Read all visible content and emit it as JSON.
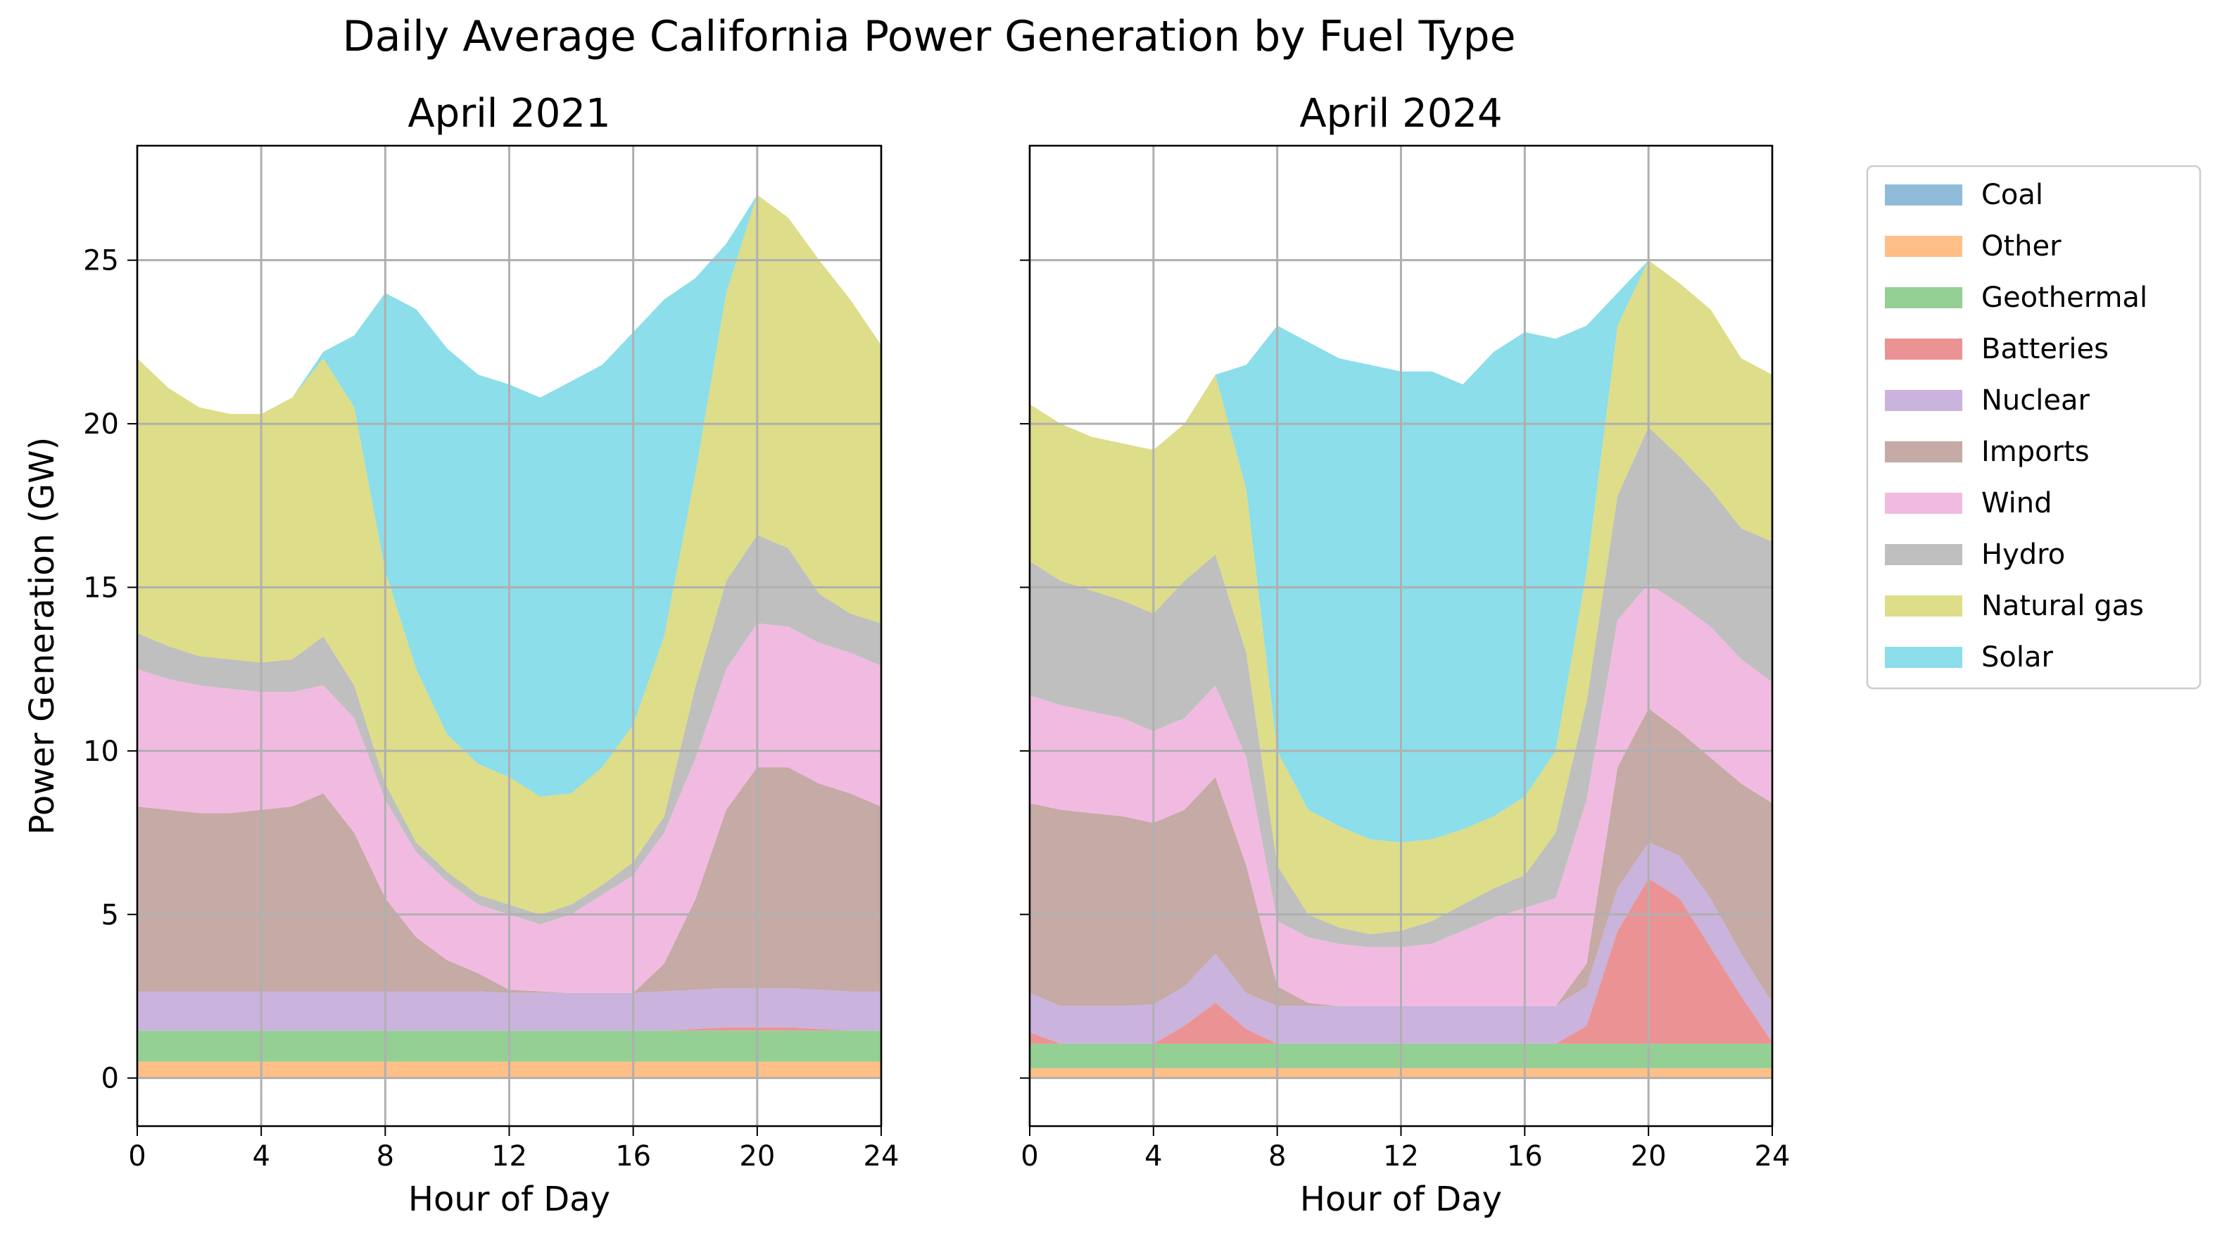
{
  "chart_data": {
    "type": "area",
    "title": "Daily Average California Power Generation by Fuel Type",
    "xlabel": "Hour of Day",
    "ylabel": "Power Generation (GW)",
    "xlim": [
      0,
      24
    ],
    "ylim": [
      -1.47,
      28.5
    ],
    "xticks": [
      0,
      4,
      8,
      12,
      16,
      20,
      24
    ],
    "yticks": [
      0,
      5,
      10,
      15,
      20,
      25
    ],
    "grid": true,
    "legend_position": "outside-right",
    "series_names": [
      "Coal",
      "Other",
      "Geothermal",
      "Batteries",
      "Nuclear",
      "Imports",
      "Wind",
      "Hydro",
      "Natural gas",
      "Solar"
    ],
    "colors": [
      "#8fbbd9",
      "#ffbf86",
      "#94cf94",
      "#eb9394",
      "#cab3dd",
      "#c5aaa5",
      "#f1bbe1",
      "#bfbfbf",
      "#dedd89",
      "#8bdeea"
    ],
    "x": [
      0,
      1,
      2,
      3,
      4,
      5,
      6,
      7,
      8,
      9,
      10,
      11,
      12,
      13,
      14,
      15,
      16,
      17,
      18,
      19,
      20,
      21,
      22,
      23,
      24
    ],
    "panels": [
      {
        "title": "April 2021",
        "series": [
          {
            "name": "Coal",
            "values": [
              0,
              0,
              0,
              0,
              0,
              0,
              0,
              0,
              0,
              0,
              0,
              0,
              0,
              0,
              0,
              0,
              0,
              0,
              0,
              0,
              0,
              0,
              0,
              0,
              0
            ]
          },
          {
            "name": "Other",
            "values": [
              0.5,
              0.5,
              0.5,
              0.5,
              0.5,
              0.5,
              0.5,
              0.5,
              0.5,
              0.5,
              0.5,
              0.5,
              0.5,
              0.5,
              0.5,
              0.5,
              0.5,
              0.5,
              0.5,
              0.5,
              0.5,
              0.5,
              0.5,
              0.5,
              0.5
            ]
          },
          {
            "name": "Geothermal",
            "values": [
              0.95,
              0.95,
              0.95,
              0.95,
              0.95,
              0.95,
              0.95,
              0.95,
              0.95,
              0.95,
              0.95,
              0.95,
              0.95,
              0.95,
              0.95,
              0.95,
              0.95,
              0.95,
              0.95,
              0.95,
              0.95,
              0.95,
              0.95,
              0.95,
              0.95
            ]
          },
          {
            "name": "Batteries",
            "values": [
              0,
              0,
              0,
              0,
              0,
              0,
              0,
              0,
              0,
              0,
              0,
              0,
              0,
              0,
              0,
              0,
              0,
              0,
              0.05,
              0.1,
              0.1,
              0.1,
              0.05,
              0,
              0
            ]
          },
          {
            "name": "Nuclear",
            "values": [
              1.2,
              1.2,
              1.2,
              1.2,
              1.2,
              1.2,
              1.2,
              1.2,
              1.2,
              1.2,
              1.2,
              1.2,
              1.15,
              1.15,
              1.15,
              1.15,
              1.15,
              1.2,
              1.2,
              1.2,
              1.2,
              1.2,
              1.2,
              1.2,
              1.2
            ]
          },
          {
            "name": "Imports",
            "values": [
              5.65,
              5.55,
              5.45,
              5.45,
              5.55,
              5.65,
              6.05,
              4.85,
              2.85,
              1.65,
              0.95,
              0.55,
              0.1,
              0.05,
              0,
              0,
              0,
              0.85,
              2.75,
              5.45,
              6.75,
              6.75,
              6.3,
              6.05,
              5.65
            ]
          },
          {
            "name": "Wind",
            "values": [
              4.2,
              4.0,
              3.9,
              3.8,
              3.6,
              3.5,
              3.3,
              3.5,
              3.0,
              2.6,
              2.4,
              2.1,
              2.3,
              2.05,
              2.4,
              3.0,
              3.6,
              4.0,
              4.3,
              4.3,
              4.4,
              4.3,
              4.3,
              4.3,
              4.3
            ]
          },
          {
            "name": "Hydro",
            "values": [
              1.1,
              1.0,
              0.9,
              0.9,
              0.9,
              1.0,
              1.5,
              1.0,
              0.5,
              0.3,
              0.3,
              0.3,
              0.3,
              0.3,
              0.3,
              0.3,
              0.4,
              0.5,
              2.2,
              2.7,
              2.7,
              2.4,
              1.5,
              1.2,
              1.3
            ]
          },
          {
            "name": "Natural gas",
            "values": [
              8.4,
              7.9,
              7.6,
              7.5,
              7.6,
              8.0,
              8.5,
              8.5,
              6.5,
              5.3,
              4.2,
              4.0,
              3.9,
              3.6,
              3.4,
              3.6,
              4.2,
              5.5,
              6.5,
              8.8,
              10.4,
              10.1,
              10.2,
              9.6,
              8.5
            ]
          },
          {
            "name": "Solar",
            "values": [
              0,
              0,
              0,
              0,
              0,
              0,
              0.2,
              2.2,
              8.5,
              11.0,
              11.8,
              11.9,
              12.0,
              12.2,
              12.6,
              12.3,
              12.0,
              10.3,
              6.0,
              1.5,
              0,
              0,
              0,
              0,
              0
            ]
          }
        ]
      },
      {
        "title": "April 2024",
        "series": [
          {
            "name": "Coal",
            "values": [
              0,
              0,
              0,
              0,
              0,
              0,
              0,
              0,
              0,
              0,
              0,
              0,
              0,
              0,
              0,
              0,
              0,
              0,
              0,
              0,
              0,
              0,
              0,
              0,
              0
            ]
          },
          {
            "name": "Other",
            "values": [
              0.3,
              0.3,
              0.3,
              0.3,
              0.3,
              0.3,
              0.3,
              0.3,
              0.3,
              0.3,
              0.3,
              0.3,
              0.3,
              0.3,
              0.3,
              0.3,
              0.3,
              0.3,
              0.3,
              0.3,
              0.3,
              0.3,
              0.3,
              0.3,
              0.3
            ]
          },
          {
            "name": "Geothermal",
            "values": [
              0.75,
              0.75,
              0.75,
              0.75,
              0.75,
              0.75,
              0.75,
              0.75,
              0.75,
              0.75,
              0.75,
              0.75,
              0.75,
              0.75,
              0.75,
              0.75,
              0.75,
              0.75,
              0.75,
              0.75,
              0.75,
              0.75,
              0.75,
              0.75,
              0.75
            ]
          },
          {
            "name": "Batteries",
            "values": [
              0.35,
              0,
              0,
              0,
              0,
              0.55,
              1.25,
              0.45,
              0,
              0,
              0,
              0,
              0,
              0,
              0,
              0,
              0,
              0,
              0.55,
              3.45,
              5.05,
              4.45,
              2.95,
              1.45,
              0.05
            ]
          },
          {
            "name": "Nuclear",
            "values": [
              1.2,
              1.15,
              1.15,
              1.15,
              1.2,
              1.2,
              1.5,
              1.1,
              1.15,
              1.15,
              1.15,
              1.15,
              1.15,
              1.15,
              1.15,
              1.15,
              1.15,
              1.15,
              1.2,
              1.3,
              1.1,
              1.3,
              1.5,
              1.3,
              1.2
            ]
          },
          {
            "name": "Imports",
            "values": [
              5.8,
              6.0,
              5.9,
              5.8,
              5.55,
              5.4,
              5.4,
              3.9,
              0.6,
              0.1,
              0,
              0,
              0,
              0,
              0,
              0,
              0,
              0,
              0.7,
              3.7,
              4.1,
              3.8,
              4.3,
              5.2,
              6.1
            ]
          },
          {
            "name": "Wind",
            "values": [
              3.3,
              3.2,
              3.1,
              3.0,
              2.8,
              2.8,
              2.8,
              3.3,
              2.0,
              2.0,
              1.9,
              1.8,
              1.8,
              1.9,
              2.3,
              2.7,
              3.0,
              3.3,
              5.0,
              4.5,
              3.8,
              3.9,
              4.0,
              3.8,
              3.7
            ]
          },
          {
            "name": "Hydro",
            "values": [
              4.1,
              3.8,
              3.7,
              3.6,
              3.6,
              4.2,
              4.0,
              3.2,
              1.7,
              0.7,
              0.5,
              0.4,
              0.5,
              0.7,
              0.8,
              0.9,
              1.0,
              2.0,
              3.0,
              3.8,
              4.8,
              4.5,
              4.2,
              4.0,
              4.3
            ]
          },
          {
            "name": "Natural gas",
            "values": [
              4.8,
              4.8,
              4.7,
              4.8,
              5.0,
              4.8,
              5.5,
              5.0,
              3.5,
              3.2,
              3.1,
              2.9,
              2.7,
              2.5,
              2.3,
              2.2,
              2.4,
              2.5,
              4.0,
              5.2,
              5.1,
              5.3,
              5.5,
              5.2,
              5.1
            ]
          },
          {
            "name": "Solar",
            "values": [
              0,
              0,
              0,
              0,
              0,
              0,
              0,
              3.8,
              13.0,
              14.3,
              14.3,
              14.5,
              14.4,
              14.3,
              13.6,
              14.2,
              14.2,
              12.6,
              7.5,
              1.0,
              0,
              0,
              0,
              0,
              0
            ]
          }
        ]
      }
    ]
  }
}
